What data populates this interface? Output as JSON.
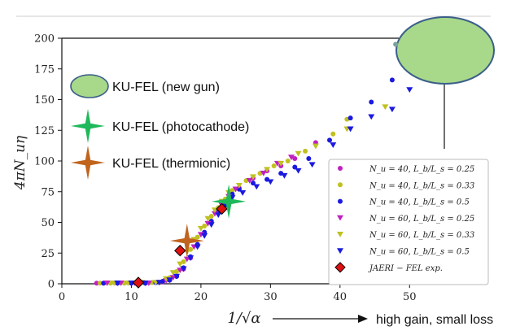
{
  "chart_data": {
    "type": "scatter",
    "title": "",
    "xlabel": "1/√α",
    "ylabel": "4πN_uη",
    "xlim": [
      0,
      55
    ],
    "ylim": [
      0,
      200
    ],
    "xticks": [
      0,
      10,
      20,
      30,
      40,
      50
    ],
    "yticks": [
      0,
      25,
      50,
      75,
      100,
      125,
      150,
      175,
      200
    ],
    "grid": false,
    "legend_position": "bottom-right",
    "series": [
      {
        "name": "N_u = 40, L_b/L_s = 0.25",
        "marker": "circle",
        "color": "#c020c0",
        "points": [
          [
            5.0,
            0.5
          ],
          [
            6.0,
            0.5
          ],
          [
            8.0,
            0.5
          ],
          [
            10.0,
            0.5
          ],
          [
            12.0,
            0.5
          ],
          [
            13.5,
            1
          ],
          [
            14.5,
            1.5
          ],
          [
            15.5,
            3
          ],
          [
            16.5,
            6
          ],
          [
            17.5,
            12
          ],
          [
            18.5,
            21
          ],
          [
            19.5,
            31
          ],
          [
            20.5,
            41
          ],
          [
            21.5,
            50
          ],
          [
            22.5,
            58
          ],
          [
            23.5,
            65
          ],
          [
            24.5,
            72
          ],
          [
            25.5,
            78
          ],
          [
            27.5,
            86
          ],
          [
            29.5,
            92
          ],
          [
            31.5,
            96
          ],
          [
            33.5,
            102
          ],
          [
            36.5,
            115
          ]
        ]
      },
      {
        "name": "N_u = 40, L_b/L_s = 0.33",
        "marker": "circle",
        "color": "#c0c020",
        "points": [
          [
            5.5,
            0.5
          ],
          [
            7.0,
            0.5
          ],
          [
            9.0,
            0.5
          ],
          [
            11.0,
            1
          ],
          [
            13.0,
            1
          ],
          [
            14.5,
            2
          ],
          [
            15.5,
            5
          ],
          [
            16.5,
            10
          ],
          [
            17.5,
            18
          ],
          [
            18.5,
            28
          ],
          [
            19.5,
            38
          ],
          [
            20.5,
            47
          ],
          [
            21.5,
            55
          ],
          [
            22.5,
            62
          ],
          [
            23.5,
            69
          ],
          [
            24.5,
            76
          ],
          [
            26.5,
            84
          ],
          [
            28.5,
            90
          ],
          [
            30.5,
            96
          ],
          [
            32.5,
            100
          ],
          [
            35.0,
            108
          ],
          [
            39.0,
            122
          ],
          [
            41.0,
            134
          ],
          [
            48.0,
            195
          ]
        ]
      },
      {
        "name": "N_u = 40, L_b/L_s = 0.5",
        "marker": "circle",
        "color": "#1a1ae0",
        "points": [
          [
            6.0,
            0.5
          ],
          [
            8.0,
            0.5
          ],
          [
            10.0,
            0.5
          ],
          [
            12.0,
            0.5
          ],
          [
            13.5,
            1
          ],
          [
            14.5,
            2
          ],
          [
            15.5,
            3
          ],
          [
            16.5,
            6
          ],
          [
            17.5,
            13
          ],
          [
            18.5,
            22
          ],
          [
            19.5,
            32
          ],
          [
            20.5,
            42
          ],
          [
            21.5,
            51
          ],
          [
            22.5,
            59
          ],
          [
            23.5,
            66
          ],
          [
            24.5,
            73
          ],
          [
            25.5,
            77
          ],
          [
            27.5,
            82
          ],
          [
            29.5,
            85
          ],
          [
            31.5,
            90
          ],
          [
            33.5,
            95
          ],
          [
            35.5,
            102
          ],
          [
            38.5,
            117
          ],
          [
            41.5,
            135
          ],
          [
            44.5,
            148
          ],
          [
            47.5,
            166
          ]
        ]
      },
      {
        "name": "N_u = 60, L_b/L_s = 0.25",
        "marker": "triangle-down",
        "color": "#c020c0",
        "points": [
          [
            6.5,
            0.5
          ],
          [
            8.5,
            0.5
          ],
          [
            10.5,
            0.5
          ],
          [
            12.5,
            0.5
          ],
          [
            14.0,
            1
          ],
          [
            15.0,
            2.5
          ],
          [
            16.0,
            5
          ],
          [
            17.0,
            11
          ],
          [
            18.0,
            20
          ],
          [
            19.0,
            30
          ],
          [
            20.0,
            40
          ],
          [
            21.0,
            49
          ],
          [
            22.0,
            57
          ],
          [
            23.0,
            64
          ],
          [
            24.0,
            71
          ],
          [
            25.0,
            77
          ],
          [
            27.0,
            84
          ],
          [
            29.0,
            90
          ],
          [
            31.0,
            98
          ],
          [
            33.0,
            103
          ]
        ]
      },
      {
        "name": "N_u = 60, L_b/L_s = 0.33",
        "marker": "triangle-down",
        "color": "#c0c020",
        "points": [
          [
            7.5,
            0.5
          ],
          [
            9.5,
            0.5
          ],
          [
            11.5,
            1
          ],
          [
            13.5,
            1
          ],
          [
            15.0,
            4
          ],
          [
            16.0,
            9
          ],
          [
            17.0,
            16
          ],
          [
            18.0,
            26
          ],
          [
            19.0,
            36
          ],
          [
            20.0,
            45
          ],
          [
            21.0,
            53
          ],
          [
            22.0,
            60
          ],
          [
            23.0,
            67
          ],
          [
            24.0,
            74
          ],
          [
            25.5,
            80
          ],
          [
            27.5,
            87
          ],
          [
            29.5,
            93
          ],
          [
            31.5,
            98
          ],
          [
            34.0,
            106
          ],
          [
            36.5,
            112
          ],
          [
            41.0,
            126
          ],
          [
            46.5,
            144
          ]
        ]
      },
      {
        "name": "N_u = 60, L_b/L_s = 0.5",
        "marker": "triangle-down",
        "color": "#1a1ae0",
        "points": [
          [
            8.0,
            0.5
          ],
          [
            10.0,
            0.5
          ],
          [
            12.0,
            0.5
          ],
          [
            14.0,
            1
          ],
          [
            15.5,
            3
          ],
          [
            16.5,
            6
          ],
          [
            17.5,
            12
          ],
          [
            18.5,
            21
          ],
          [
            19.5,
            30
          ],
          [
            20.5,
            39
          ],
          [
            21.5,
            48
          ],
          [
            22.5,
            56
          ],
          [
            23.5,
            63
          ],
          [
            24.5,
            70
          ],
          [
            26.0,
            74
          ],
          [
            28.0,
            79
          ],
          [
            30.0,
            83
          ],
          [
            32.0,
            88
          ],
          [
            34.0,
            92
          ],
          [
            36.0,
            97
          ],
          [
            39.0,
            113
          ],
          [
            41.5,
            126
          ],
          [
            44.5,
            136
          ],
          [
            47.5,
            142
          ],
          [
            50.0,
            158
          ]
        ]
      },
      {
        "name": "JAERI − FEL exp.",
        "marker": "diamond",
        "color": "#e01010",
        "points": [
          [
            11.0,
            1
          ],
          [
            17.0,
            27
          ],
          [
            23.0,
            61
          ]
        ]
      }
    ],
    "annotations": [
      {
        "label": "KU-FEL (new gun)",
        "marker": "ellipse",
        "color": "#a8d88a",
        "x": 48,
        "y": 195
      },
      {
        "label": "KU-FEL (photocathode)",
        "marker": "star",
        "color": "#1fb85a",
        "x": 24,
        "y": 67
      },
      {
        "label": "KU-FEL (thermionic)",
        "marker": "star",
        "color": "#c0641e",
        "x": 18,
        "y": 35
      }
    ],
    "x_arrow_note": "high gain, small loss"
  }
}
